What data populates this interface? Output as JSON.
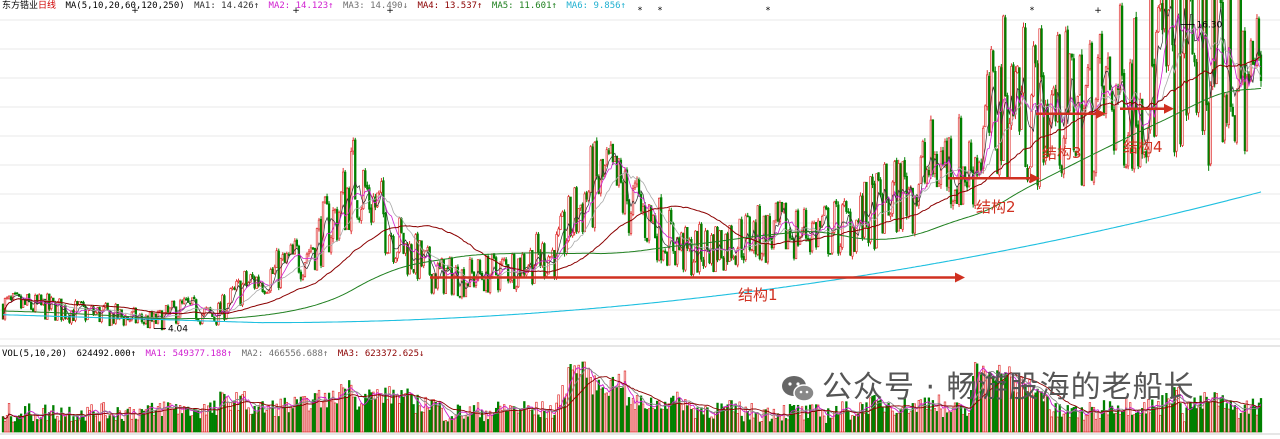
{
  "header": {
    "stock_name": "东方锆业",
    "period": "日线",
    "ma_spec": "MA(5,10,20,60,120,250)",
    "ma1": "MA1: 14.426↑",
    "ma2": "MA2: 14.123↑",
    "ma3": "MA3: 14.490↓",
    "ma4": "MA4: 13.537↑",
    "ma5": "MA5: 11.601↑",
    "ma6": "MA6: 9.856↑"
  },
  "volume_header": {
    "spec": "VOL(5,10,20)",
    "vol": "624492.000↑",
    "ma1": "MA1: 549377.188↑",
    "ma2": "MA2: 466556.688↑",
    "ma3": "MA3: 623372.625↓"
  },
  "watermark": {
    "text": "公众号 · 畅游股海的老船长"
  },
  "colors": {
    "up": "#e03030",
    "down": "#008000",
    "ma1": "#303030",
    "ma2": "#d020d0",
    "ma3": "#707070",
    "ma4": "#8b0000",
    "ma5": "#208020",
    "ma6": "#20c0e0",
    "annotation": "#d03020",
    "grid": "#e8e8e8"
  },
  "chart_data": {
    "type": "candlestick",
    "price_range": [
      3.5,
      16.8
    ],
    "high_label": "16.30",
    "low_label": "4.04",
    "annotations": [
      {
        "label": "结构1",
        "level": 6.1
      },
      {
        "label": "结构2",
        "level": 10.1
      },
      {
        "label": "结构3",
        "level": 12.7
      },
      {
        "label": "结构4",
        "level": 12.9
      }
    ],
    "anchors": [
      [
        0,
        5.0
      ],
      [
        20,
        4.9
      ],
      [
        40,
        4.7
      ],
      [
        60,
        4.5
      ],
      [
        75,
        4.3
      ],
      [
        90,
        4.9
      ],
      [
        105,
        4.5
      ],
      [
        120,
        5.8
      ],
      [
        135,
        6.3
      ],
      [
        150,
        7.1
      ],
      [
        165,
        8.5
      ],
      [
        175,
        10.2
      ],
      [
        185,
        9.0
      ],
      [
        200,
        7.2
      ],
      [
        215,
        6.2
      ],
      [
        230,
        6.1
      ],
      [
        245,
        6.3
      ],
      [
        260,
        6.8
      ],
      [
        275,
        7.1
      ],
      [
        290,
        9.5
      ],
      [
        300,
        10.0
      ],
      [
        310,
        9.2
      ],
      [
        325,
        8.2
      ],
      [
        340,
        7.0
      ],
      [
        350,
        7.3
      ],
      [
        365,
        7.7
      ],
      [
        380,
        7.8
      ],
      [
        395,
        8.0
      ],
      [
        410,
        8.0
      ],
      [
        425,
        8.3
      ],
      [
        440,
        9.2
      ],
      [
        455,
        10.0
      ],
      [
        465,
        10.8
      ],
      [
        480,
        10.5
      ],
      [
        490,
        12.2
      ],
      [
        500,
        13.8
      ],
      [
        510,
        13.1
      ],
      [
        520,
        12.9
      ],
      [
        535,
        13.0
      ],
      [
        545,
        13.1
      ],
      [
        560,
        13.9
      ],
      [
        575,
        14.6
      ],
      [
        585,
        15.8
      ],
      [
        595,
        15.2
      ],
      [
        605,
        14.3
      ],
      [
        615,
        14.0
      ],
      [
        625,
        14.5
      ]
    ]
  }
}
